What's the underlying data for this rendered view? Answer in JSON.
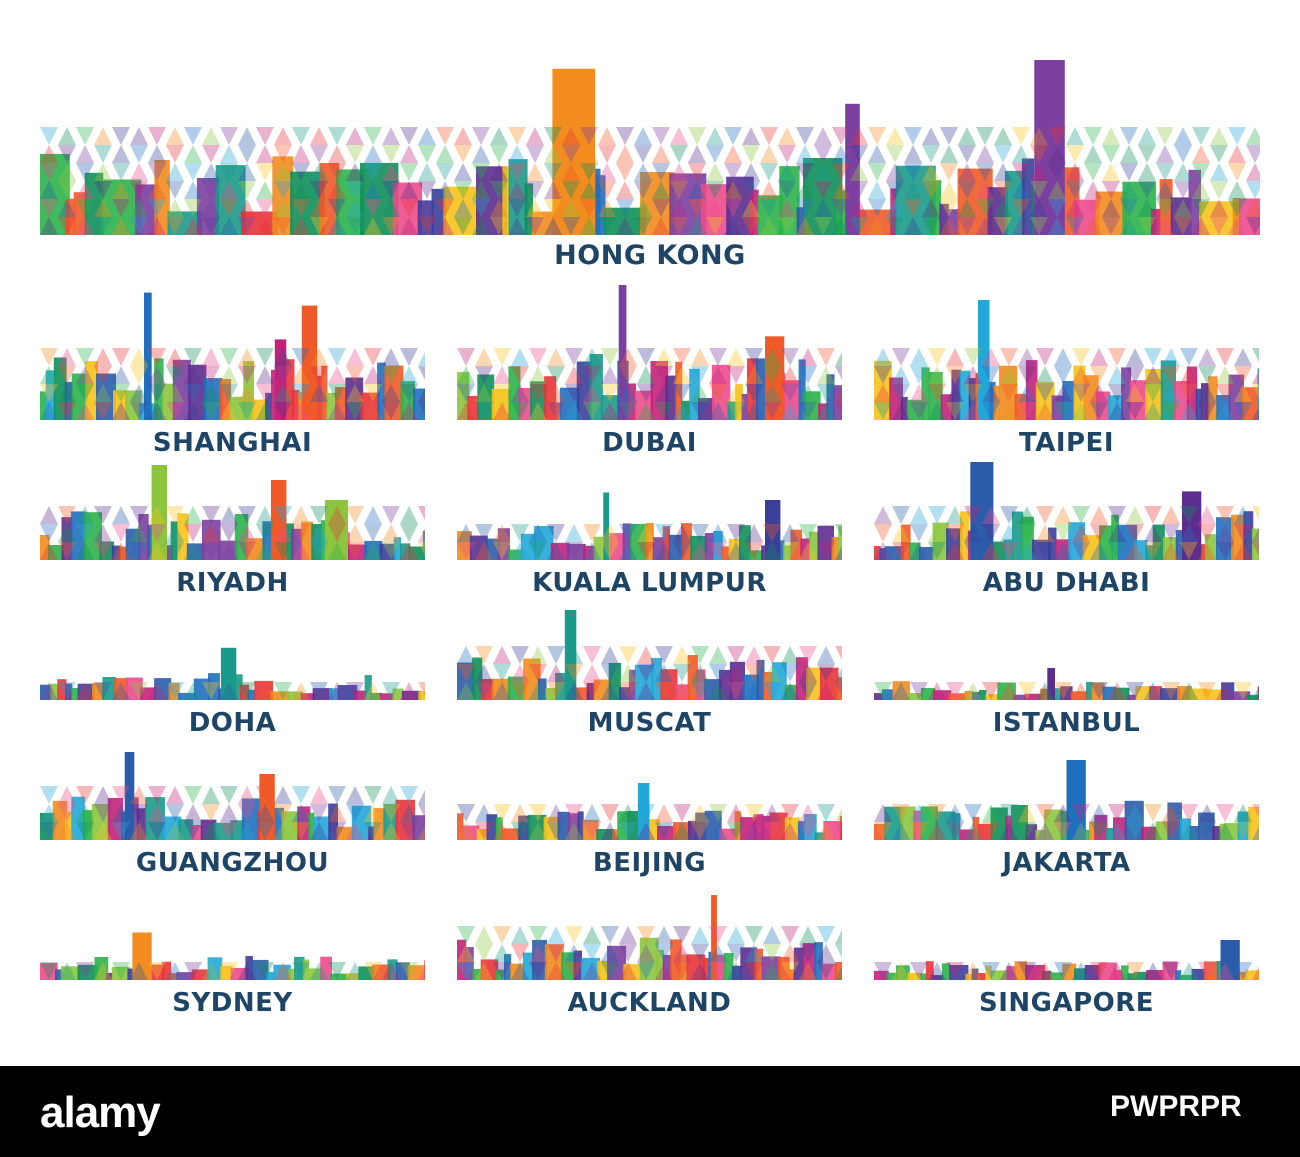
{
  "cities": [
    {
      "id": "hong-kong",
      "name": "HONG KONG"
    },
    {
      "id": "shanghai",
      "name": "SHANGHAI"
    },
    {
      "id": "dubai",
      "name": "DUBAI"
    },
    {
      "id": "taipei",
      "name": "TAIPEI"
    },
    {
      "id": "riyadh",
      "name": "RIYADH"
    },
    {
      "id": "kuala-lumpur",
      "name": "KUALA LUMPUR"
    },
    {
      "id": "abu-dhabi",
      "name": "ABU DHABI"
    },
    {
      "id": "doha",
      "name": "DOHA"
    },
    {
      "id": "muscat",
      "name": "MUSCAT"
    },
    {
      "id": "istanbul",
      "name": "ISTANBUL"
    },
    {
      "id": "guangzhou",
      "name": "GUANGZHOU"
    },
    {
      "id": "beijing",
      "name": "BEIJING"
    },
    {
      "id": "jakarta",
      "name": "JAKARTA"
    },
    {
      "id": "sydney",
      "name": "SYDNEY"
    },
    {
      "id": "auckland",
      "name": "AUCKLAND"
    },
    {
      "id": "singapore",
      "name": "SINGAPORE"
    }
  ],
  "footer": {
    "logo": "alamy",
    "image_id": "PWPRPR"
  },
  "palette": [
    "#e8343a",
    "#f28c1e",
    "#f6c21a",
    "#8cc63f",
    "#2bb34a",
    "#1a9a8a",
    "#22a7d8",
    "#1f6fbf",
    "#3a3f9a",
    "#7b3fa0",
    "#c2227a",
    "#ec4b8a",
    "#f05a28",
    "#0f8f5a",
    "#5b2d8e",
    "#2a5caa"
  ],
  "label_color": "#1f4566"
}
